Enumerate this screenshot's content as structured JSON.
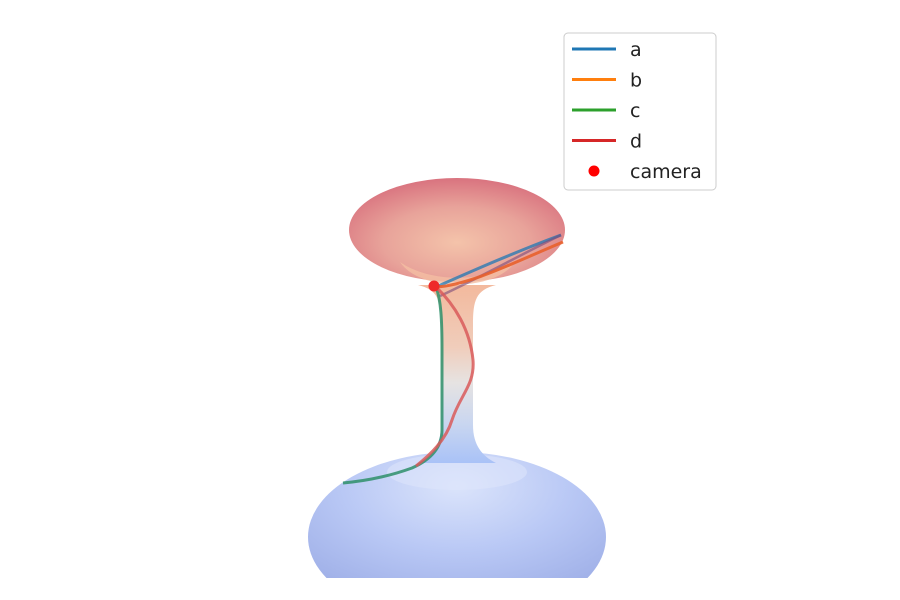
{
  "chart_data": {
    "type": "3d-surface",
    "surface": "wormhole",
    "colormap": "coolwarm",
    "series": [
      {
        "name": "a",
        "color": "#1f77b4"
      },
      {
        "name": "b",
        "color": "#ff7f0e"
      },
      {
        "name": "c",
        "color": "#2ca02c"
      },
      {
        "name": "d",
        "color": "#d62728"
      },
      {
        "name": "camera",
        "color": "#ff0000",
        "marker": "point"
      }
    ],
    "legend_position": "top-right",
    "axes_visible": false
  }
}
